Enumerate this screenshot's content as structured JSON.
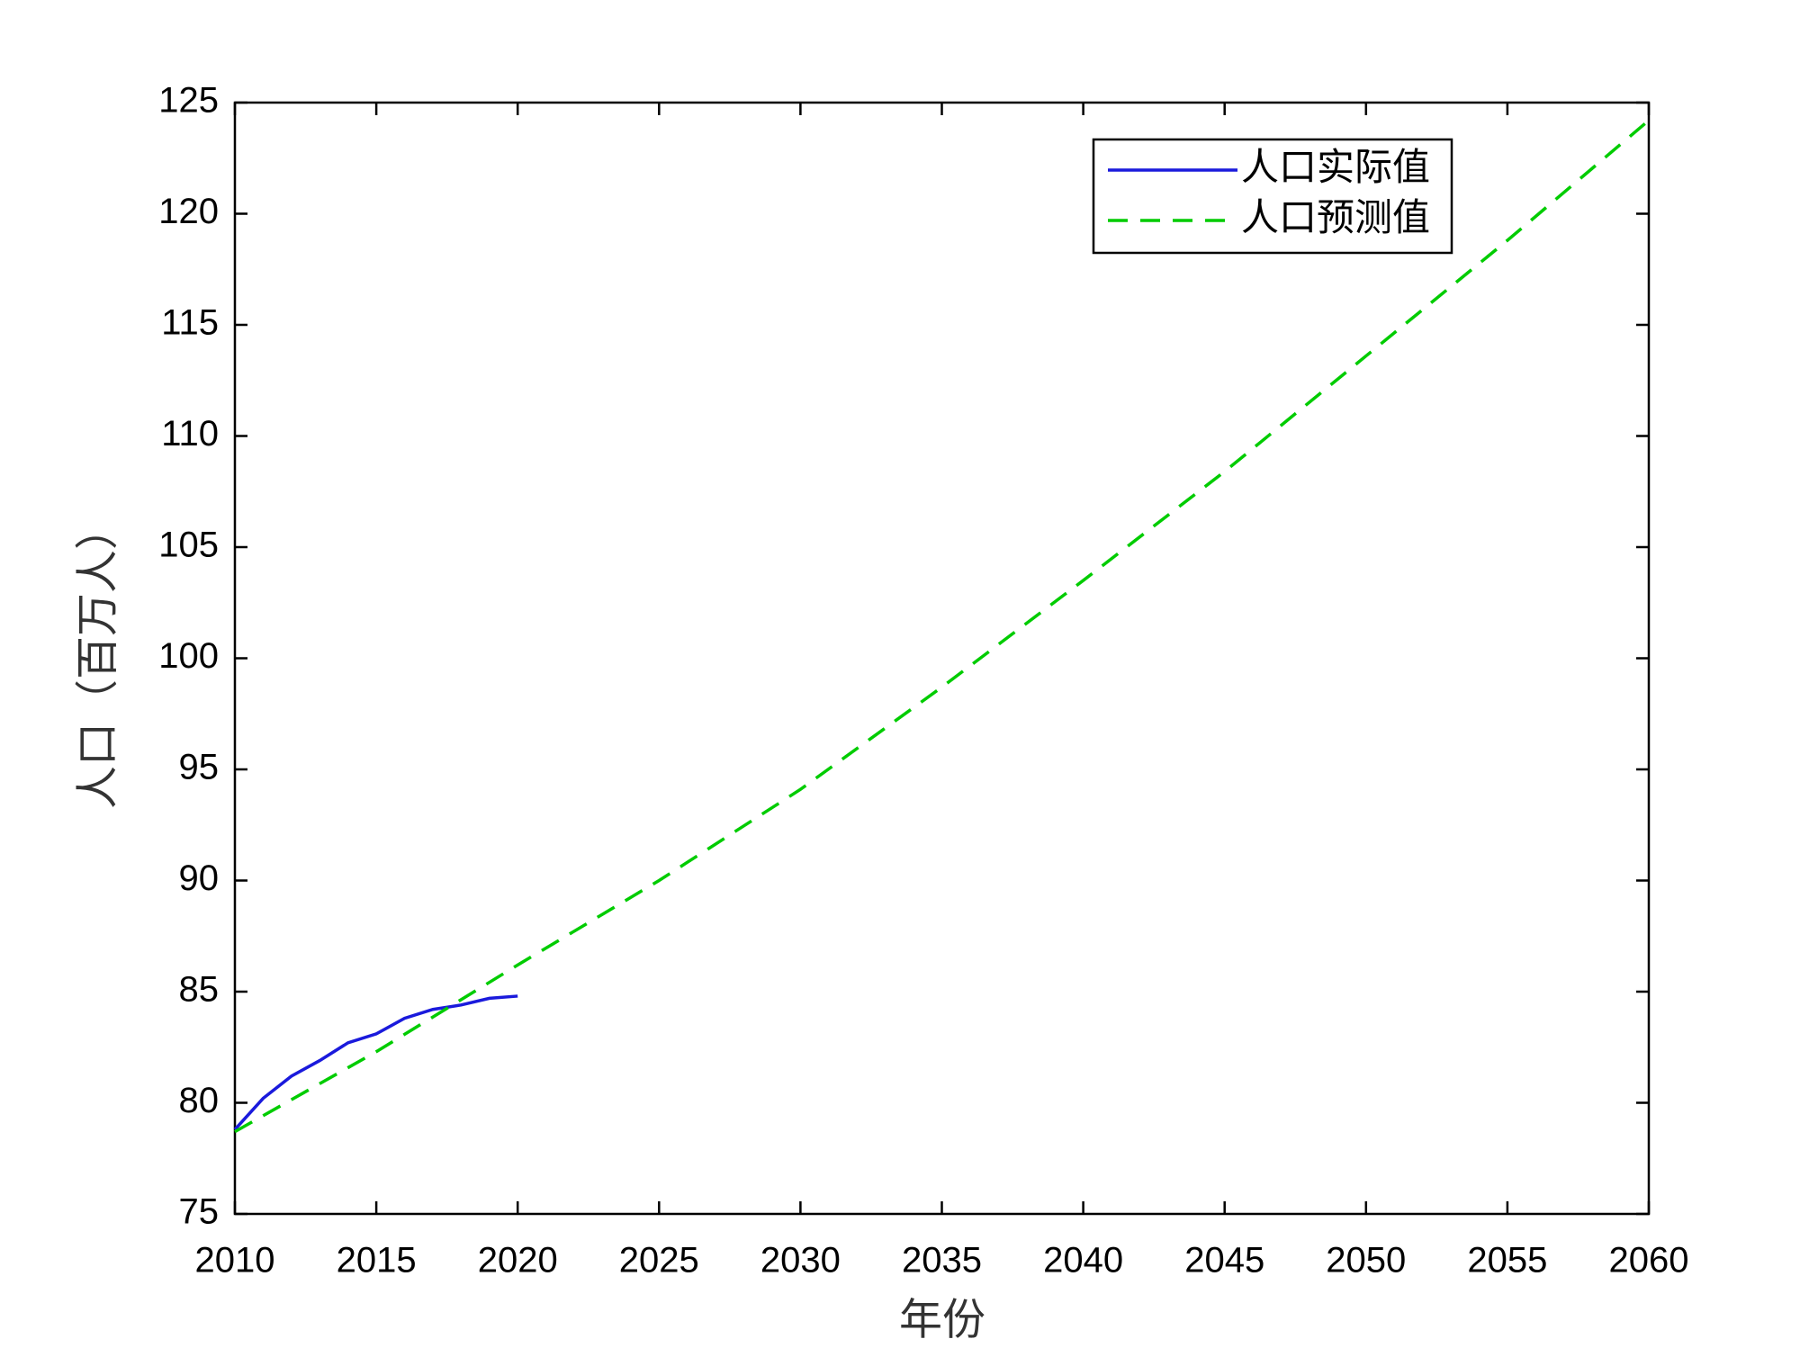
{
  "chart_data": {
    "type": "line",
    "xlabel": "年份",
    "ylabel": "人口（百万人）",
    "series": [
      {
        "name": "人口实际值",
        "color": "#1a1adc",
        "dash": "solid",
        "x": [
          2010,
          2011,
          2012,
          2013,
          2014,
          2015,
          2016,
          2017,
          2018,
          2019,
          2020
        ],
        "values": [
          78.8,
          80.2,
          81.2,
          81.9,
          82.7,
          83.1,
          83.8,
          84.2,
          84.4,
          84.7,
          84.8
        ]
      },
      {
        "name": "人口预测值",
        "color": "#00cc00",
        "dash": "dashed",
        "x": [
          2010,
          2015,
          2020,
          2025,
          2030,
          2035,
          2040,
          2045,
          2050,
          2055,
          2060
        ],
        "values": [
          78.7,
          82.3,
          86.2,
          90.0,
          94.1,
          98.7,
          103.5,
          108.4,
          113.6,
          118.8,
          124.2
        ]
      }
    ],
    "xlim": [
      2010,
      2060
    ],
    "xticks": [
      2010,
      2015,
      2020,
      2025,
      2030,
      2035,
      2040,
      2045,
      2050,
      2055,
      2060
    ],
    "ylim": [
      75,
      125
    ],
    "yticks": [
      75,
      80,
      85,
      90,
      95,
      100,
      105,
      110,
      115,
      120,
      125
    ],
    "grid": false,
    "legend": "upper-right"
  }
}
